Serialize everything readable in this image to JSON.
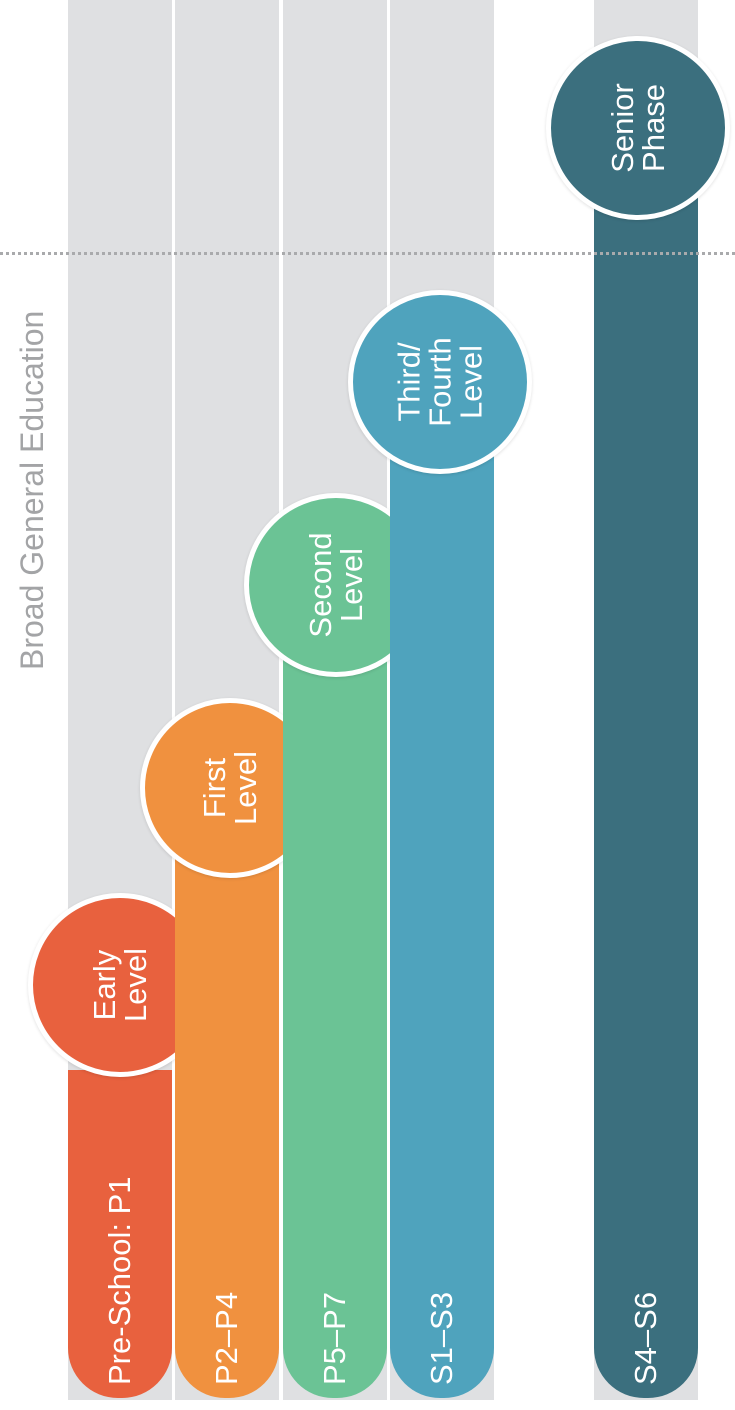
{
  "title": "Broad General Education",
  "levels": [
    {
      "stage": "Pre-School: P1",
      "level_lines": [
        "Early",
        "Level"
      ],
      "color": "#e8613e"
    },
    {
      "stage": "P2–P4",
      "level_lines": [
        "First",
        "Level"
      ],
      "color": "#f0913f"
    },
    {
      "stage": "P5–P7",
      "level_lines": [
        "Second",
        "Level"
      ],
      "color": "#6bc395"
    },
    {
      "stage": "S1–S3",
      "level_lines": [
        "Third/",
        "Fourth",
        "Level"
      ],
      "color": "#4fa3bd"
    },
    {
      "stage": "S4–S6",
      "level_lines": [
        "Senior",
        "Phase"
      ],
      "color": "#3b6f7e"
    }
  ],
  "colors": {
    "track": "#dfe0e2",
    "divider": "#a9aaac",
    "title": "#a3a4a6"
  }
}
